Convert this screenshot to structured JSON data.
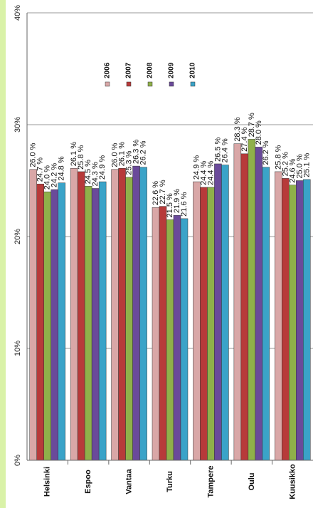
{
  "chart_data": {
    "type": "bar",
    "orientation": "rotated",
    "categories": [
      "Helsinki",
      "Espoo",
      "Vantaa",
      "Turku",
      "Tampere",
      "Oulu",
      "Kuusikko"
    ],
    "series": [
      {
        "name": "2006",
        "color": "#d9a7a7",
        "values": [
          26.0,
          26.1,
          26.0,
          22.6,
          24.9,
          28.3,
          25.8
        ]
      },
      {
        "name": "2007",
        "color": "#b73a3a",
        "values": [
          24.7,
          25.8,
          26.1,
          22.7,
          24.4,
          27.4,
          25.2
        ]
      },
      {
        "name": "2008",
        "color": "#8fb04a",
        "values": [
          24.0,
          24.5,
          25.3,
          21.5,
          24.4,
          28.7,
          24.6
        ]
      },
      {
        "name": "2009",
        "color": "#6a4a9a",
        "values": [
          24.2,
          24.3,
          26.3,
          21.9,
          26.5,
          28.0,
          25.0
        ]
      },
      {
        "name": "2010",
        "color": "#3aa3c8",
        "values": [
          24.8,
          24.9,
          26.2,
          21.6,
          26.4,
          26.2,
          25.1
        ]
      }
    ],
    "y_ticks": [
      "0%",
      "10%",
      "20%",
      "30%",
      "40%"
    ],
    "ylim": [
      0,
      40
    ],
    "label_suffix": " %",
    "grid": true,
    "legend_position": "top"
  }
}
